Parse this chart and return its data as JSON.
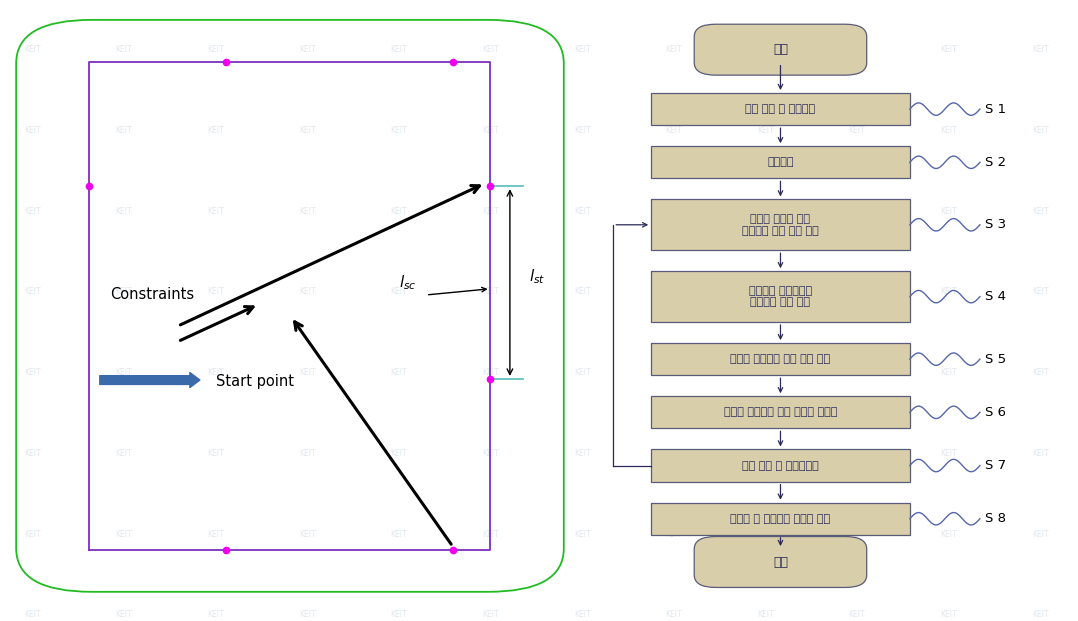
{
  "bg_color": "#ffffff",
  "watermark_text": "KEIT",
  "watermark_color": "#aabccc",
  "purple_color": "#7b2fbe",
  "green_color": "#22bb22",
  "magenta_color": "#ee00ee",
  "cyan_color": "#55bbbb",
  "lsc_label": "$l_{sc}$",
  "lst_label": "$l_{st}$",
  "constraints_text": "Constraints",
  "startpoint_text": "Start point",
  "flow_box_color": "#d8cfaa",
  "flow_box_edge": "#5a5a7a",
  "flow_text_color": "#2a2a5a",
  "flow_arrow_color": "#2a2a5a",
  "flow_wave_color": "#5566aa",
  "start_label": "시작",
  "end_label": "종료",
  "steps": [
    "부재 생성 및 영역정의",
    "영역배치",
    "사용자 입력에 의한\n스테이지 경로 수동 정의",
    "스캐너와 스테이지간\n제약조건 수동 정의",
    "구간별 스테이지 속도 자동 계산",
    "구간간 스테이지 속도 변화량 최소화",
    "패스 검증 및 시뮬레이션",
    "스캐너 및 스테이지 데이터 생성"
  ],
  "step_labels": [
    "S 1",
    "S 2",
    "S 3",
    "S 4",
    "S 5",
    "S 6",
    "S 7",
    "S 8"
  ]
}
